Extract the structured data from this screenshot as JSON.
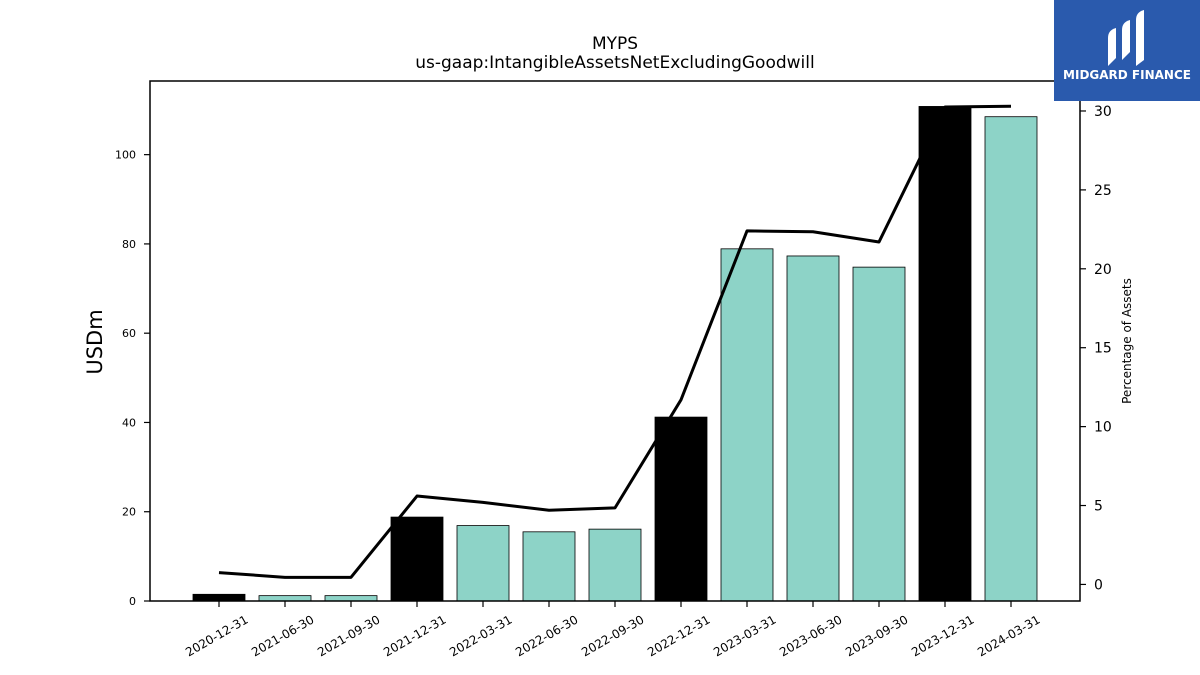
{
  "chart_data": {
    "type": "bar",
    "title": "MYPS",
    "subtitle": "us-gaap:IntangibleAssetsNetExcludingGoodwill",
    "ylabel": "USDm",
    "y2label": "Percentage of Assets",
    "categories": [
      "2020-12-31",
      "2021-06-30",
      "2021-09-30",
      "2021-12-31",
      "2022-03-31",
      "2022-06-30",
      "2022-09-30",
      "2022-12-31",
      "2023-03-31",
      "2023-06-30",
      "2023-09-30",
      "2023-12-31",
      "2024-03-31"
    ],
    "values": [
      1.5,
      1.2,
      1.2,
      18.8,
      16.9,
      15.5,
      16.1,
      41.2,
      78.9,
      77.3,
      74.8,
      110.8,
      108.5
    ],
    "bar_colors": [
      "#000000",
      "#8dd3c7",
      "#8dd3c7",
      "#000000",
      "#8dd3c7",
      "#8dd3c7",
      "#8dd3c7",
      "#000000",
      "#8dd3c7",
      "#8dd3c7",
      "#8dd3c7",
      "#000000",
      "#8dd3c7"
    ],
    "line_series": {
      "name": "",
      "values": [
        0.75,
        0.45,
        0.45,
        5.6,
        5.2,
        4.7,
        4.85,
        11.7,
        22.4,
        22.35,
        21.7,
        30.25,
        30.3
      ]
    },
    "ylim": [
      0,
      116.5
    ],
    "yticks": [
      0,
      20,
      40,
      60,
      80,
      100
    ],
    "y2lim": [
      -1.05,
      31.9
    ],
    "y2ticks": [
      0,
      5,
      10,
      15,
      20,
      25,
      30
    ],
    "grid": false,
    "legend": "none"
  },
  "logo": {
    "text": "MIDGARD FINANCE",
    "color": "#2a5aad"
  }
}
